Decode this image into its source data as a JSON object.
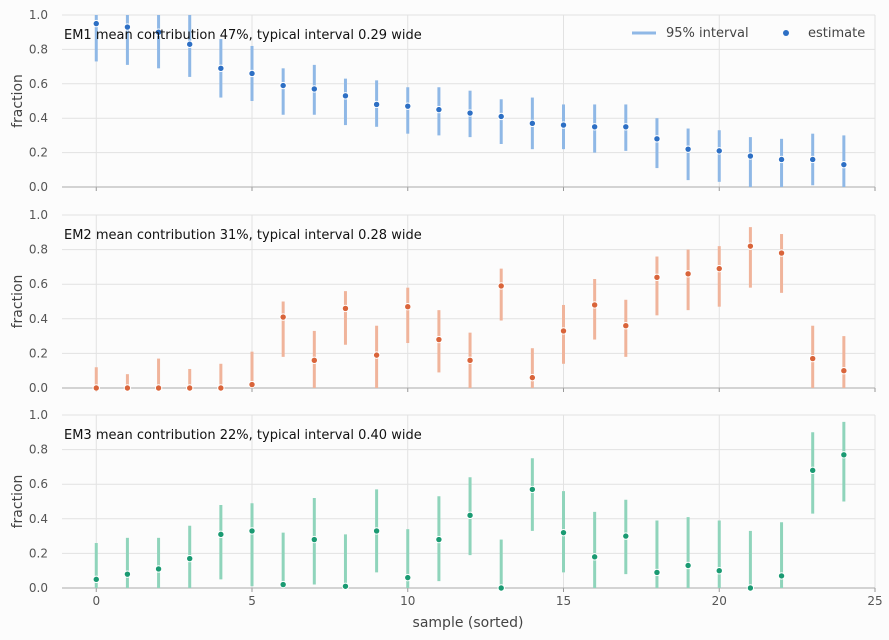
{
  "chart_data": {
    "type": "scatter",
    "xlabel": "sample (sorted)",
    "ylabel": "fraction",
    "xlim": [
      -1.1,
      25
    ],
    "ylim": [
      0,
      1
    ],
    "x_ticks": [
      0,
      5,
      10,
      15,
      20,
      25
    ],
    "y_ticks": [
      0.0,
      0.2,
      0.4,
      0.6,
      0.8,
      1.0
    ],
    "grid": true,
    "legend": {
      "placement": "top-right",
      "interval_label": "95% interval",
      "estimate_label": "estimate"
    },
    "panels": [
      {
        "name": "EM1",
        "annotation": "mean contribution 47%, typical interval 0.29 wide",
        "line_color": "#8fb8e6",
        "point_color": "#2d6fc4",
        "x": [
          0,
          1,
          2,
          3,
          4,
          5,
          6,
          7,
          8,
          9,
          10,
          11,
          12,
          13,
          14,
          15,
          16,
          17,
          18,
          19,
          20,
          21,
          22,
          23,
          24
        ],
        "estimate": [
          0.95,
          0.93,
          0.9,
          0.83,
          0.69,
          0.66,
          0.59,
          0.57,
          0.53,
          0.48,
          0.47,
          0.45,
          0.43,
          0.41,
          0.37,
          0.36,
          0.35,
          0.35,
          0.28,
          0.22,
          0.21,
          0.18,
          0.16,
          0.16,
          0.13
        ],
        "low": [
          0.73,
          0.71,
          0.69,
          0.64,
          0.52,
          0.5,
          0.42,
          0.42,
          0.36,
          0.35,
          0.31,
          0.3,
          0.29,
          0.25,
          0.22,
          0.22,
          0.2,
          0.21,
          0.11,
          0.04,
          0.03,
          0.0,
          0.0,
          0.01,
          0.0
        ],
        "high": [
          1.0,
          1.0,
          1.0,
          1.0,
          0.86,
          0.82,
          0.69,
          0.71,
          0.63,
          0.62,
          0.58,
          0.58,
          0.56,
          0.51,
          0.52,
          0.48,
          0.48,
          0.48,
          0.4,
          0.34,
          0.33,
          0.29,
          0.28,
          0.31,
          0.3
        ]
      },
      {
        "name": "EM2",
        "annotation": "mean contribution 31%, typical interval 0.28 wide",
        "line_color": "#f0b49b",
        "point_color": "#d9643a",
        "x": [
          0,
          1,
          2,
          3,
          4,
          5,
          6,
          7,
          8,
          9,
          10,
          11,
          12,
          13,
          14,
          15,
          16,
          17,
          18,
          19,
          20,
          21,
          22,
          23,
          24
        ],
        "estimate": [
          0.0,
          0.0,
          0.0,
          0.0,
          0.0,
          0.02,
          0.41,
          0.16,
          0.46,
          0.19,
          0.47,
          0.28,
          0.16,
          0.59,
          0.06,
          0.33,
          0.48,
          0.36,
          0.64,
          0.66,
          0.69,
          0.82,
          0.78,
          0.17,
          0.1
        ],
        "low": [
          0.0,
          0.0,
          0.0,
          0.0,
          0.0,
          0.0,
          0.18,
          0.0,
          0.25,
          0.0,
          0.26,
          0.09,
          0.0,
          0.39,
          0.0,
          0.14,
          0.28,
          0.18,
          0.42,
          0.45,
          0.47,
          0.58,
          0.55,
          0.0,
          0.0
        ],
        "high": [
          0.12,
          0.08,
          0.17,
          0.11,
          0.14,
          0.21,
          0.5,
          0.33,
          0.56,
          0.36,
          0.58,
          0.45,
          0.32,
          0.69,
          0.23,
          0.48,
          0.63,
          0.51,
          0.76,
          0.8,
          0.82,
          0.93,
          0.89,
          0.36,
          0.3
        ]
      },
      {
        "name": "EM3",
        "annotation": "mean contribution 22%, typical interval 0.40 wide",
        "line_color": "#8fd4bb",
        "point_color": "#1a9a72",
        "x": [
          0,
          1,
          2,
          3,
          4,
          5,
          6,
          7,
          8,
          9,
          10,
          11,
          12,
          13,
          14,
          15,
          16,
          17,
          18,
          19,
          20,
          21,
          22,
          23,
          24
        ],
        "estimate": [
          0.05,
          0.08,
          0.11,
          0.17,
          0.31,
          0.33,
          0.02,
          0.28,
          0.01,
          0.33,
          0.06,
          0.28,
          0.42,
          0.0,
          0.57,
          0.32,
          0.18,
          0.3,
          0.09,
          0.13,
          0.1,
          0.0,
          0.07,
          0.68,
          0.77
        ],
        "low": [
          0.0,
          0.0,
          0.0,
          0.0,
          0.05,
          0.01,
          0.0,
          0.02,
          0.0,
          0.09,
          0.0,
          0.04,
          0.19,
          0.0,
          0.33,
          0.09,
          0.0,
          0.08,
          0.0,
          0.0,
          0.0,
          0.0,
          0.0,
          0.43,
          0.5
        ],
        "high": [
          0.26,
          0.29,
          0.29,
          0.36,
          0.48,
          0.49,
          0.32,
          0.52,
          0.31,
          0.57,
          0.34,
          0.53,
          0.64,
          0.28,
          0.75,
          0.56,
          0.44,
          0.51,
          0.39,
          0.41,
          0.39,
          0.33,
          0.38,
          0.9,
          0.96
        ]
      }
    ]
  }
}
